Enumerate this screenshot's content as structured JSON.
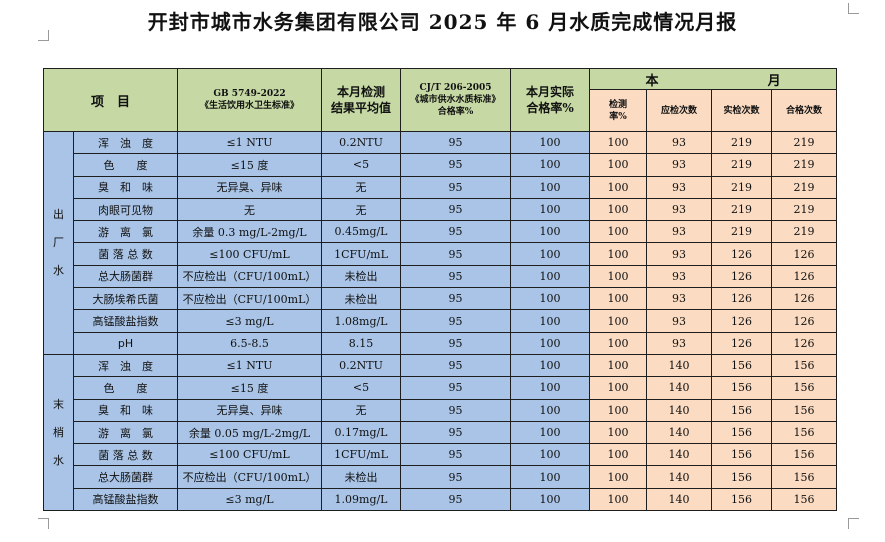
{
  "title": "开封市城市水务集团有限公司 2025 年 6 月水质完成情况月报",
  "header": {
    "item": "项　目",
    "gb_line1": "GB 5749-2022",
    "gb_line2": "《生活饮用水卫生标准》",
    "avg_line1": "本月检测",
    "avg_line2": "结果平均值",
    "cj_line1": "CJ/T 206-2005",
    "cj_line2": "《城市供水水质标准》",
    "cj_line3": "合格率%",
    "actual_line1": "本月实际",
    "actual_line2": "合格率%",
    "month_ben": "本",
    "month_yue": "月",
    "rate_line1": "检测",
    "rate_line2": "率%",
    "due": "应检次数",
    "done": "实检次数",
    "pass": "合格次数"
  },
  "groups": [
    {
      "category": [
        "出",
        "厂",
        "水"
      ],
      "rows": [
        {
          "item": "浑　浊　度",
          "standard": "≤1 NTU",
          "avg": "0.2NTU",
          "cj_rate": "95",
          "actual_rate": "100",
          "detect_rate": "100",
          "due": "93",
          "done": "219",
          "pass": "219"
        },
        {
          "item": "色　　度",
          "standard": "≤15 度",
          "avg": "<5",
          "cj_rate": "95",
          "actual_rate": "100",
          "detect_rate": "100",
          "due": "93",
          "done": "219",
          "pass": "219"
        },
        {
          "item": "臭　和　味",
          "standard": "无异臭、异味",
          "avg": "无",
          "cj_rate": "95",
          "actual_rate": "100",
          "detect_rate": "100",
          "due": "93",
          "done": "219",
          "pass": "219"
        },
        {
          "item": "肉眼可见物",
          "standard": "无",
          "avg": "无",
          "cj_rate": "95",
          "actual_rate": "100",
          "detect_rate": "100",
          "due": "93",
          "done": "219",
          "pass": "219"
        },
        {
          "item": "游　离　氯",
          "standard": "余量 0.3 mg/L-2mg/L",
          "avg": "0.45mg/L",
          "cj_rate": "95",
          "actual_rate": "100",
          "detect_rate": "100",
          "due": "93",
          "done": "219",
          "pass": "219"
        },
        {
          "item": "菌 落 总 数",
          "standard": "≤100 CFU/mL",
          "avg": "1CFU/mL",
          "cj_rate": "95",
          "actual_rate": "100",
          "detect_rate": "100",
          "due": "93",
          "done": "126",
          "pass": "126"
        },
        {
          "item": "总大肠菌群",
          "standard": "不应检出（CFU/100mL）",
          "avg": "未检出",
          "cj_rate": "95",
          "actual_rate": "100",
          "detect_rate": "100",
          "due": "93",
          "done": "126",
          "pass": "126"
        },
        {
          "item": "大肠埃希氏菌",
          "standard": "不应检出（CFU/100mL）",
          "avg": "未检出",
          "cj_rate": "95",
          "actual_rate": "100",
          "detect_rate": "100",
          "due": "93",
          "done": "126",
          "pass": "126"
        },
        {
          "item": "高锰酸盐指数",
          "standard": "≤3 mg/L",
          "avg": "1.08mg/L",
          "cj_rate": "95",
          "actual_rate": "100",
          "detect_rate": "100",
          "due": "93",
          "done": "126",
          "pass": "126"
        },
        {
          "item": "pH",
          "standard": "6.5-8.5",
          "avg": "8.15",
          "cj_rate": "95",
          "actual_rate": "100",
          "detect_rate": "100",
          "due": "93",
          "done": "126",
          "pass": "126"
        }
      ]
    },
    {
      "category": [
        "末",
        "梢",
        "水"
      ],
      "rows": [
        {
          "item": "浑　浊　度",
          "standard": "≤1 NTU",
          "avg": "0.2NTU",
          "cj_rate": "95",
          "actual_rate": "100",
          "detect_rate": "100",
          "due": "140",
          "done": "156",
          "pass": "156"
        },
        {
          "item": "色　　度",
          "standard": "≤15 度",
          "avg": "<5",
          "cj_rate": "95",
          "actual_rate": "100",
          "detect_rate": "100",
          "due": "140",
          "done": "156",
          "pass": "156"
        },
        {
          "item": "臭　和　味",
          "standard": "无异臭、异味",
          "avg": "无",
          "cj_rate": "95",
          "actual_rate": "100",
          "detect_rate": "100",
          "due": "140",
          "done": "156",
          "pass": "156"
        },
        {
          "item": "游　离　氯",
          "standard": "余量 0.05 mg/L-2mg/L",
          "avg": "0.17mg/L",
          "cj_rate": "95",
          "actual_rate": "100",
          "detect_rate": "100",
          "due": "140",
          "done": "156",
          "pass": "156"
        },
        {
          "item": "菌 落 总 数",
          "standard": "≤100 CFU/mL",
          "avg": "1CFU/mL",
          "cj_rate": "95",
          "actual_rate": "100",
          "detect_rate": "100",
          "due": "140",
          "done": "156",
          "pass": "156"
        },
        {
          "item": "总大肠菌群",
          "standard": "不应检出（CFU/100mL）",
          "avg": "未检出",
          "cj_rate": "95",
          "actual_rate": "100",
          "detect_rate": "100",
          "due": "140",
          "done": "156",
          "pass": "156"
        },
        {
          "item": "高锰酸盐指数",
          "standard": "≤3 mg/L",
          "avg": "1.09mg/L",
          "cj_rate": "95",
          "actual_rate": "100",
          "detect_rate": "100",
          "due": "140",
          "done": "156",
          "pass": "156"
        }
      ]
    }
  ],
  "colors": {
    "header_green": "#c6d9a5",
    "cell_blue": "#a9c4e6",
    "month_peach": "#fbdcc3"
  }
}
